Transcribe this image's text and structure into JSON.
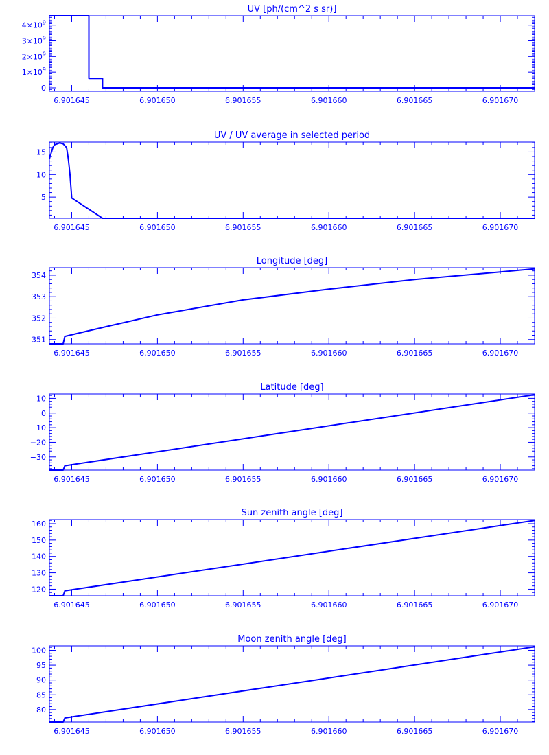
{
  "style": {
    "color": "#0000ff",
    "background": "#ffffff"
  },
  "x_axis": {
    "range": [
      6.9016437,
      6.901672
    ],
    "major_ticks": [
      6.901645,
      6.90165,
      6.901655,
      6.90166,
      6.901665,
      6.90167
    ],
    "tick_labels": [
      "6.901645",
      "6.901650",
      "6.901655",
      "6.901660",
      "6.901665",
      "6.901670"
    ],
    "minor_per_major": 5
  },
  "chart_data": [
    {
      "type": "line",
      "title": "UV [ph/(cm^2 s sr)]",
      "ylim": [
        -220000000.0,
        4600000000.0
      ],
      "yticks": [
        0,
        1000000000.0,
        2000000000.0,
        3000000000.0,
        4000000000.0
      ],
      "ytick_labels": [
        {
          "base": "0",
          "exp": ""
        },
        {
          "base": "1×10",
          "exp": "9"
        },
        {
          "base": "2×10",
          "exp": "9"
        },
        {
          "base": "3×10",
          "exp": "9"
        },
        {
          "base": "4×10",
          "exp": "9"
        }
      ],
      "y_minor_per_major": 10,
      "step": true,
      "x": [
        6.9016437,
        6.901646,
        6.9016468,
        6.901672
      ],
      "y": [
        4600000000.0,
        600000000.0,
        0,
        0
      ]
    },
    {
      "type": "line",
      "title": "UV / UV average in selected period",
      "ylim": [
        0.3,
        17.2
      ],
      "yticks": [
        5,
        10,
        15
      ],
      "ytick_labels": [
        "5",
        "10",
        "15"
      ],
      "y_minor_per_major": 5,
      "x": [
        6.9016437,
        6.9016439,
        6.901644,
        6.9016443,
        6.9016445,
        6.9016447,
        6.9016448,
        6.9016449,
        6.901645,
        6.9016468,
        6.901672
      ],
      "y": [
        13.5,
        16.0,
        16.6,
        17.0,
        16.8,
        16.0,
        13.5,
        10.0,
        4.8,
        0.3,
        0.3
      ]
    },
    {
      "type": "line",
      "title": "Longitude [deg]",
      "ylim": [
        350.8,
        354.35
      ],
      "yticks": [
        351,
        352,
        353,
        354
      ],
      "ytick_labels": [
        "351",
        "352",
        "353",
        "354"
      ],
      "y_minor_per_major": 5,
      "x": [
        6.9016437,
        6.9016445,
        6.9016446,
        6.901647,
        6.90165,
        6.901655,
        6.90166,
        6.901665,
        6.90167,
        6.901672
      ],
      "y": [
        350.8,
        350.8,
        351.15,
        351.6,
        352.15,
        352.85,
        353.35,
        353.8,
        354.15,
        354.3
      ]
    },
    {
      "type": "line",
      "title": "Latitude [deg]",
      "ylim": [
        -39,
        13
      ],
      "yticks": [
        -30,
        -20,
        -10,
        0,
        10
      ],
      "ytick_labels": [
        "−30",
        "−20",
        "−10",
        "0",
        "10"
      ],
      "y_minor_per_major": 5,
      "x": [
        6.9016437,
        6.9016445,
        6.9016446,
        6.901672
      ],
      "y": [
        -39,
        -39,
        -36,
        12.5
      ]
    },
    {
      "type": "line",
      "title": "Sun zenith angle [deg]",
      "ylim": [
        116,
        162.5
      ],
      "yticks": [
        120,
        130,
        140,
        150,
        160
      ],
      "ytick_labels": [
        "120",
        "130",
        "140",
        "150",
        "160"
      ],
      "y_minor_per_major": 5,
      "x": [
        6.9016437,
        6.9016445,
        6.9016446,
        6.901672
      ],
      "y": [
        116,
        116,
        119,
        162
      ]
    },
    {
      "type": "line",
      "title": "Moon zenith angle [deg]",
      "ylim": [
        75.8,
        101.5
      ],
      "yticks": [
        80,
        85,
        90,
        95,
        100
      ],
      "ytick_labels": [
        "80",
        "85",
        "90",
        "95",
        "100"
      ],
      "y_minor_per_major": 5,
      "x": [
        6.9016437,
        6.9016445,
        6.9016446,
        6.901672
      ],
      "y": [
        75.8,
        75.8,
        77.2,
        101.2
      ]
    }
  ]
}
